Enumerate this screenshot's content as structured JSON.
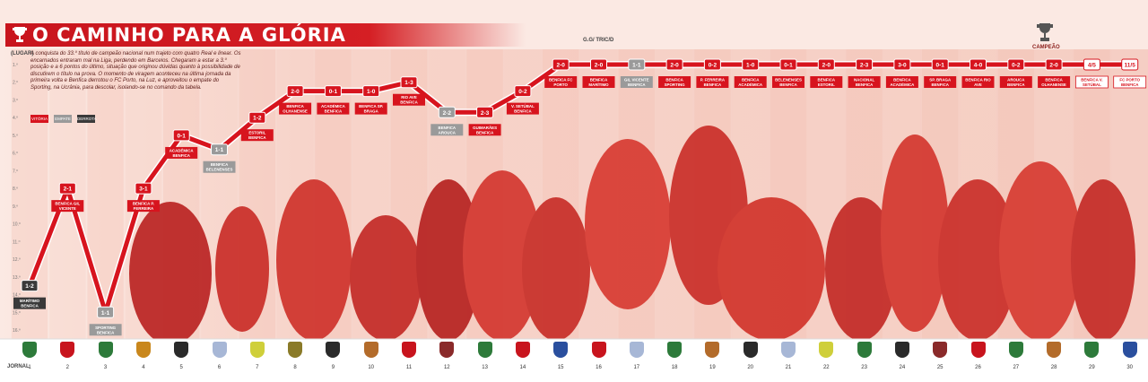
{
  "title": "O CAMINHO PARA A GLÓRIA",
  "intro_text": "A conquista do 33.º título de campeão nacional num trajeto com quatro Real e linear. Os encarnados entraram mal na Liga, perdendo em Barcelos. Chegaram a estar a 3.º posição e a 6 pontos do último, situação que originou dúvidas quanto à possibilidade de discutirem o título na prova. O momento de viragem aconteceu na última jornada da primeira volta e Benfica derrotou o FC Porto, na Luz, e aproveitou o empate do Sporting, na Ucrânia, para descolar, isolando-se no comando da tabela.",
  "header_labels": {
    "rows": "G.G/ TRIC/D",
    "units_y": "(LUGAR)",
    "units_x": "JORNAL",
    "champion": "CAMPEÃO"
  },
  "legend": [
    {
      "label": "VITÓRIA",
      "color": "#d7141e"
    },
    {
      "label": "EMPATE",
      "color": "#9a9a9a"
    },
    {
      "label": "DERROTA",
      "color": "#3a3a3a"
    }
  ],
  "crest_colors": [
    "#2d7a3a",
    "#c8141d",
    "#2d7a3a",
    "#c9871c",
    "#2a2a2a",
    "#a7b7d6",
    "#cfcf3a",
    "#8a7a28",
    "#2a2a2a",
    "#b36b2a",
    "#c8141d",
    "#8a2a2a",
    "#2d7a3a",
    "#c8141d",
    "#2a4f9e",
    "#c8141d",
    "#a7b7d6",
    "#2d7a3a",
    "#b36b2a",
    "#2a2a2a",
    "#a7b7d6",
    "#cfcf3a",
    "#2d7a3a",
    "#2a2a2a",
    "#8a2a2a",
    "#c8141d",
    "#2d7a3a",
    "#b36b2a",
    "#2d7a3a",
    "#2a4f9e"
  ],
  "chart_data": {
    "type": "line",
    "title": "O CAMINHO PARA A GLÓRIA",
    "xlabel": "JORNAL",
    "ylabel": "(LUGAR)",
    "x": [
      1,
      2,
      3,
      4,
      5,
      6,
      7,
      8,
      9,
      10,
      11,
      12,
      13,
      14,
      15,
      16,
      17,
      18,
      19,
      20,
      21,
      22,
      23,
      24,
      25,
      26,
      27,
      28,
      29,
      30
    ],
    "ylim": [
      1,
      16
    ],
    "ytick_labels": [
      "1.º",
      "2.º",
      "3.º",
      "4.º",
      "5.º",
      "6.º",
      "7.º",
      "8.º",
      "9.º",
      "10.º",
      "11.º",
      "12.º",
      "13.º",
      "14.º",
      "15.º",
      "16.º"
    ],
    "points": [
      {
        "x": 1,
        "y": 13.5,
        "score": "1-2",
        "result": "D",
        "match": "MARÍTIMO BENFICA"
      },
      {
        "x": 2,
        "y": 8,
        "score": "2-1",
        "result": "V",
        "match": "BENFICA GIL VICENTE"
      },
      {
        "x": 3,
        "y": 15,
        "score": "1-1",
        "result": "E",
        "match": "SPORTING BENFICA"
      },
      {
        "x": 4,
        "y": 8,
        "score": "3-1",
        "result": "V",
        "match": "BENFICA P. FERREIRA"
      },
      {
        "x": 5,
        "y": 5,
        "score": "0-1",
        "result": "V",
        "match": "ACADÉMICA BENFICA"
      },
      {
        "x": 6,
        "y": 5.8,
        "score": "1-1",
        "result": "E",
        "match": "BENFICA BELENENSES"
      },
      {
        "x": 7,
        "y": 4,
        "score": "1-2",
        "result": "V",
        "match": "ESTORIL BENFICA"
      },
      {
        "x": 8,
        "y": 2.5,
        "score": "2-0",
        "result": "V",
        "match": "BENFICA OLHANENSE"
      },
      {
        "x": 9,
        "y": 2.5,
        "score": "0-1",
        "result": "V",
        "match": "ACADÉMICA BENFICA"
      },
      {
        "x": 10,
        "y": 2.5,
        "score": "1-0",
        "result": "V",
        "match": "BENFICA SP. BRAGA"
      },
      {
        "x": 11,
        "y": 2,
        "score": "1-3",
        "result": "V",
        "match": "RIO AVE BENFICA"
      },
      {
        "x": 12,
        "y": 3.7,
        "score": "2-2",
        "result": "E",
        "match": "BENFICA AROUCA"
      },
      {
        "x": 13,
        "y": 3.7,
        "score": "2-3",
        "result": "V",
        "match": "GUIMARÃES BENFICA"
      },
      {
        "x": 14,
        "y": 2.5,
        "score": "0-2",
        "result": "V",
        "match": "V. SETÚBAL BENFICA"
      },
      {
        "x": 15,
        "y": 1,
        "score": "2-0",
        "result": "V",
        "match": "BENFICA FC PORTO"
      },
      {
        "x": 16,
        "y": 1,
        "score": "2-0",
        "result": "V",
        "match": "BENFICA MARÍTIMO"
      },
      {
        "x": 17,
        "y": 1,
        "score": "1-1",
        "result": "E",
        "match": "GIL VICENTE BENFICA"
      },
      {
        "x": 18,
        "y": 1,
        "score": "2-0",
        "result": "V",
        "match": "BENFICA SPORTING"
      },
      {
        "x": 19,
        "y": 1,
        "score": "0-2",
        "result": "V",
        "match": "P. FERREIRA BENFICA"
      },
      {
        "x": 20,
        "y": 1,
        "score": "1-0",
        "result": "V",
        "match": "BENFICA ACADÉMICA"
      },
      {
        "x": 21,
        "y": 1,
        "score": "0-1",
        "result": "V",
        "match": "BELENENSES BENFICA"
      },
      {
        "x": 22,
        "y": 1,
        "score": "2-0",
        "result": "V",
        "match": "BENFICA ESTORIL"
      },
      {
        "x": 23,
        "y": 1,
        "score": "2-3",
        "result": "V",
        "match": "NACIONAL BENFICA"
      },
      {
        "x": 24,
        "y": 1,
        "score": "3-0",
        "result": "V",
        "match": "BENFICA ACADÉMICA"
      },
      {
        "x": 25,
        "y": 1,
        "score": "0-1",
        "result": "V",
        "match": "SP. BRAGA BENFICA"
      },
      {
        "x": 26,
        "y": 1,
        "score": "4-0",
        "result": "V",
        "match": "BENFICA RIO AVE"
      },
      {
        "x": 27,
        "y": 1,
        "score": "0-2",
        "result": "V",
        "match": "AROUCA BENFICA"
      },
      {
        "x": 28,
        "y": 1,
        "score": "2-0",
        "result": "V",
        "match": "BENFICA OLHANENSE"
      },
      {
        "x": 29,
        "y": 1,
        "score": "4/5",
        "result": "F",
        "match": "BENFICA V. SETÚBAL"
      },
      {
        "x": 30,
        "y": 1,
        "score": "11/5",
        "result": "F",
        "match": "FC PORTO BENFICA"
      }
    ]
  }
}
